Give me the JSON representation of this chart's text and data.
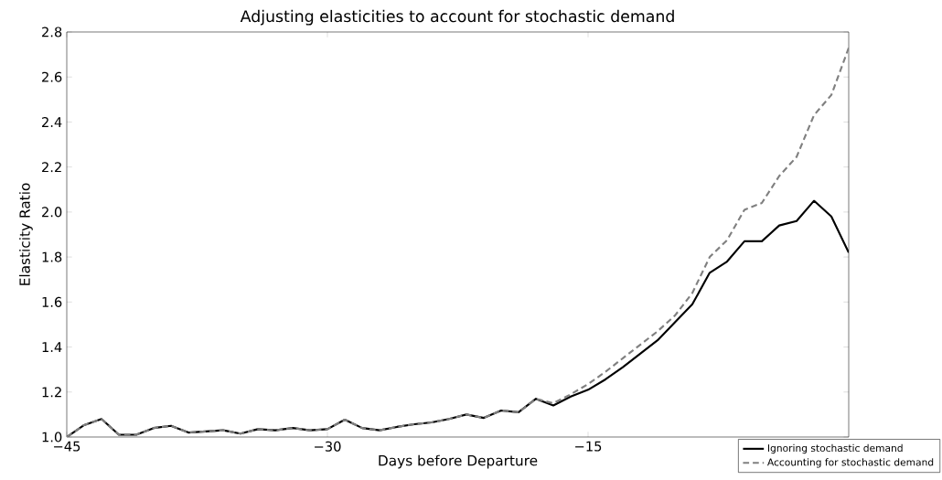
{
  "chart_data": {
    "type": "line",
    "title": "Adjusting elasticities to account for stochastic demand",
    "xlabel": "Days before Departure",
    "ylabel": "Elasticity Ratio",
    "x": [
      -45,
      -44,
      -43,
      -42,
      -41,
      -40,
      -39,
      -38,
      -37,
      -36,
      -35,
      -34,
      -33,
      -32,
      -31,
      -30,
      -29,
      -28,
      -27,
      -26,
      -25,
      -24,
      -23,
      -22,
      -21,
      -20,
      -19,
      -18,
      -17,
      -16,
      -15,
      -14,
      -13,
      -12,
      -11,
      -10,
      -9,
      -8,
      -7,
      -6,
      -5,
      -4,
      -3,
      -2,
      -1,
      0
    ],
    "series": [
      {
        "name": "Ignoring stochastic demand",
        "color": "#000000",
        "line_style": "solid",
        "values": [
          1.0,
          1.053,
          1.08,
          1.01,
          1.01,
          1.04,
          1.05,
          1.02,
          1.025,
          1.03,
          1.015,
          1.035,
          1.03,
          1.04,
          1.03,
          1.035,
          1.077,
          1.04,
          1.03,
          1.045,
          1.057,
          1.065,
          1.08,
          1.1,
          1.085,
          1.118,
          1.11,
          1.17,
          1.14,
          1.18,
          1.21,
          1.256,
          1.31,
          1.37,
          1.43,
          1.51,
          1.59,
          1.73,
          1.78,
          1.87,
          1.87,
          1.94,
          1.96,
          2.05,
          1.98,
          1.82
        ]
      },
      {
        "name": "Accounting for stochastic demand",
        "color": "#808080",
        "line_style": "dashed",
        "values": [
          1.0,
          1.053,
          1.08,
          1.01,
          1.01,
          1.04,
          1.05,
          1.02,
          1.025,
          1.03,
          1.015,
          1.035,
          1.03,
          1.04,
          1.03,
          1.035,
          1.077,
          1.04,
          1.03,
          1.045,
          1.057,
          1.065,
          1.08,
          1.1,
          1.085,
          1.118,
          1.11,
          1.17,
          1.15,
          1.19,
          1.235,
          1.29,
          1.35,
          1.41,
          1.47,
          1.54,
          1.64,
          1.8,
          1.875,
          2.01,
          2.04,
          2.16,
          2.245,
          2.43,
          2.52,
          2.73
        ]
      }
    ],
    "xlim": [
      -45,
      0
    ],
    "ylim": [
      1.0,
      2.8
    ],
    "xticks": [
      {
        "value": -45,
        "label": "−45"
      },
      {
        "value": -30,
        "label": "−30"
      },
      {
        "value": -15,
        "label": "−15"
      }
    ],
    "yticks": [
      {
        "value": 1.0,
        "label": "1.0"
      },
      {
        "value": 1.2,
        "label": "1.2"
      },
      {
        "value": 1.4,
        "label": "1.4"
      },
      {
        "value": 1.6,
        "label": "1.6"
      },
      {
        "value": 1.8,
        "label": "1.8"
      },
      {
        "value": 2.0,
        "label": "2.0"
      },
      {
        "value": 2.2,
        "label": "2.2"
      },
      {
        "value": 2.4,
        "label": "2.4"
      },
      {
        "value": 2.6,
        "label": "2.6"
      },
      {
        "value": 2.8,
        "label": "2.8"
      }
    ],
    "grid": false,
    "legend": "bottom right"
  }
}
